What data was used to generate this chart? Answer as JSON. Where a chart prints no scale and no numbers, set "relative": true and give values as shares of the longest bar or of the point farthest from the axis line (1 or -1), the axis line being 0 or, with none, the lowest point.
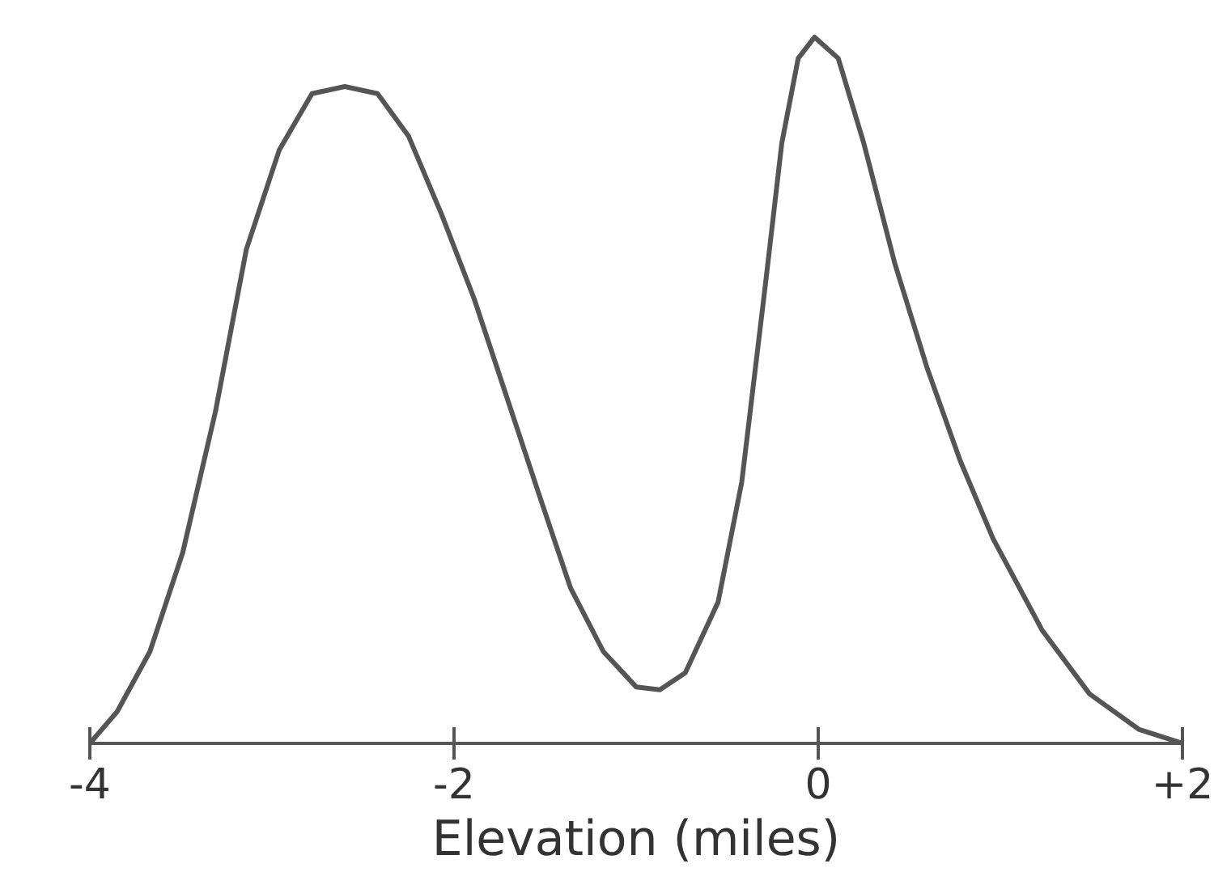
{
  "chart_data": {
    "type": "line",
    "relative": true,
    "xlabel": "Elevation (miles)",
    "xlim": [
      -4,
      2
    ],
    "xticks": [
      -4,
      -2,
      0,
      {
        "value": 2,
        "label": "+2"
      }
    ],
    "grid": false,
    "marker": "none",
    "line_style": "solid",
    "series": [
      {
        "color": "#555555",
        "x": [
          -4,
          -3.85,
          -3.67,
          -3.49,
          -3.31,
          -3.14,
          -2.96,
          -2.78,
          -2.6,
          -2.42,
          -2.25,
          -2.07,
          -1.89,
          -1.71,
          -1.53,
          -1.36,
          -1.18,
          -1.0,
          -0.87,
          -0.73,
          -0.55,
          -0.42,
          -0.29,
          -0.2,
          -0.11,
          -0.02,
          0.11,
          0.25,
          0.42,
          0.6,
          0.78,
          0.96,
          1.23,
          1.49,
          1.76,
          2
        ],
        "values": [
          0,
          0.045,
          0.13,
          0.27,
          0.47,
          0.7,
          0.84,
          0.92,
          0.93,
          0.92,
          0.86,
          0.75,
          0.63,
          0.49,
          0.35,
          0.22,
          0.13,
          0.08,
          0.076,
          0.1,
          0.2,
          0.37,
          0.65,
          0.85,
          0.97,
          1.0,
          0.97,
          0.85,
          0.68,
          0.53,
          0.4,
          0.29,
          0.16,
          0.07,
          0.02,
          0
        ]
      }
    ]
  }
}
